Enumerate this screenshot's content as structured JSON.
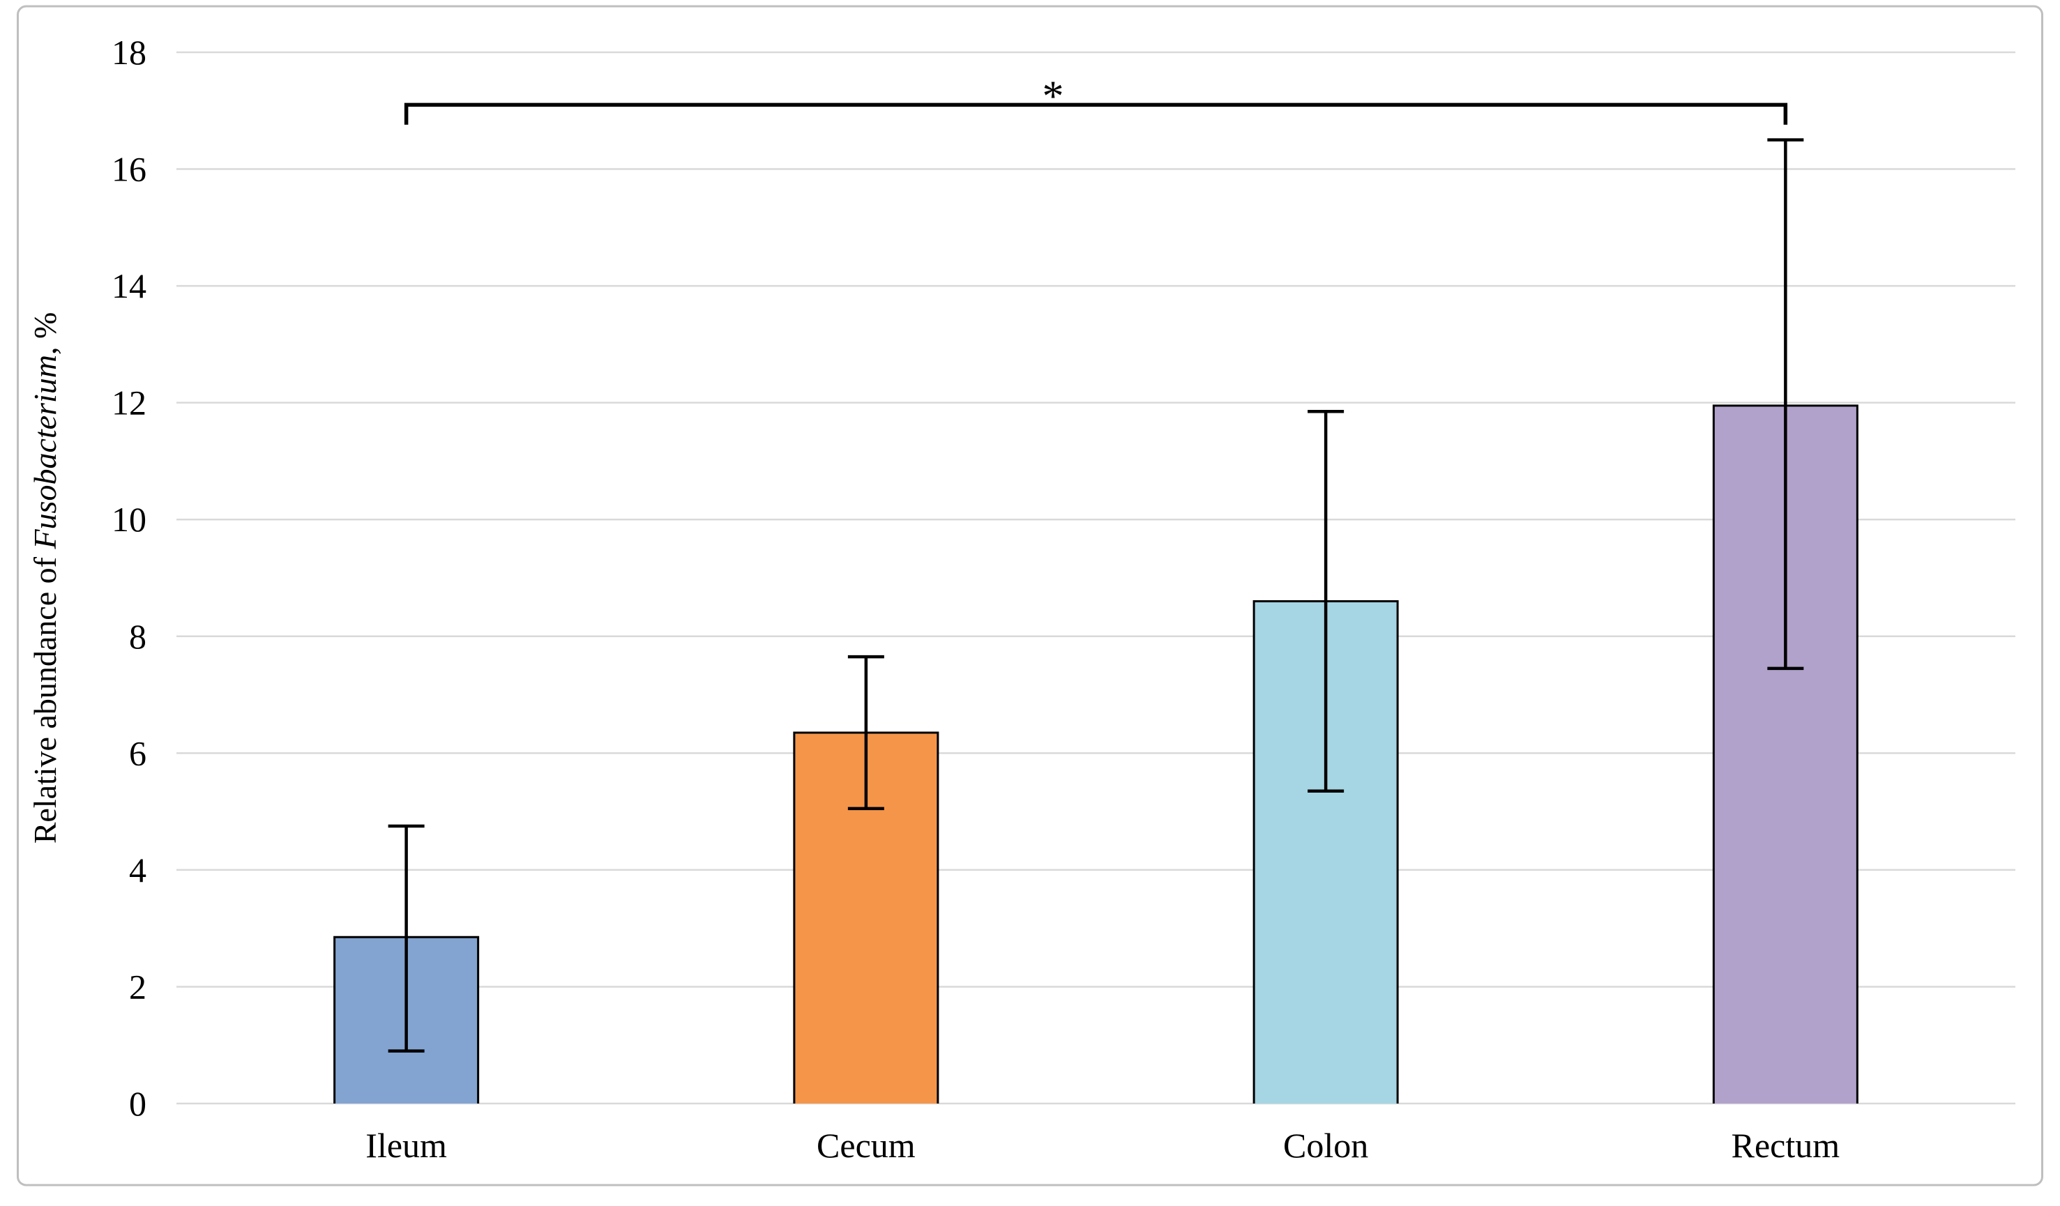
{
  "chart_data": {
    "type": "bar",
    "title": "",
    "categories": [
      "Ileum",
      "Cecum",
      "Colon",
      "Rectum"
    ],
    "values": [
      2.85,
      6.35,
      8.6,
      11.95
    ],
    "error_low": [
      0.9,
      5.05,
      5.35,
      7.45
    ],
    "error_high": [
      4.75,
      7.65,
      11.85,
      16.5
    ],
    "bar_colors": [
      "#83A4D1",
      "#F5954A",
      "#A6D5E3",
      "#B1A2CB"
    ],
    "bar_border_color": "#000000",
    "error_bar_color": "#000000",
    "xlabel": "",
    "ylabel_prefix": "Relative abundance of ",
    "ylabel_italic": "Fusobacterium",
    "ylabel_suffix": ", %",
    "ylim": [
      0,
      18
    ],
    "yticks": [
      0,
      2,
      4,
      6,
      8,
      10,
      12,
      14,
      16,
      18
    ],
    "grid": true,
    "gridline_color": "#D9D9D9",
    "axis_text_color": "#000000",
    "legend_position": "none",
    "frame_border_color": "#BFBFBF",
    "background_color": "#FFFFFF",
    "significance": {
      "symbol": "*",
      "from_category": "Ileum",
      "to_category": "Rectum",
      "bracket_value": 17.1,
      "hook_drop_value": 16.76
    }
  }
}
